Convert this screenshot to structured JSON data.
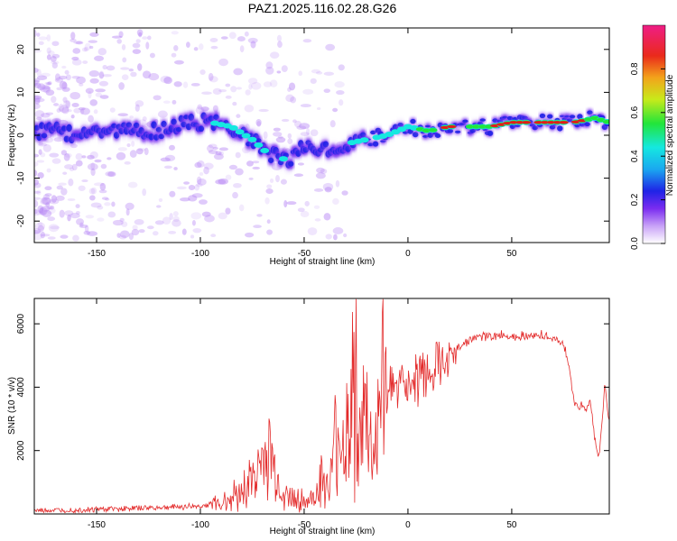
{
  "title": "PAZ1.2025.116.02.28.G26",
  "colors": {
    "band_outer": "#b787f5",
    "band_mid": "#6a1cf0",
    "band_inner": "#1f23e6",
    "band_cyan": "#15e8e0",
    "band_green": "#22e53a",
    "band_red": "#e31b1b",
    "snr_line": "#e32b2b"
  },
  "chart_data": [
    {
      "type": "heatmap",
      "xlabel": "Height of straight line (km)",
      "ylabel": "Frequency (Hz)",
      "xlim": [
        -180,
        97
      ],
      "ylim": [
        -25,
        25
      ],
      "xticks": [
        -150,
        -100,
        -50,
        0,
        50
      ],
      "yticks": [
        -20,
        -10,
        0,
        10,
        20
      ],
      "colorbar": {
        "label": "Normalized spectral amplitude",
        "ticks": [
          "0.0",
          "0.2",
          "0.4",
          "0.6",
          "0.8"
        ],
        "range": [
          0,
          1
        ]
      },
      "ridge": {
        "x": [
          -180,
          -160,
          -140,
          -120,
          -105,
          -95,
          -85,
          -75,
          -68,
          -62,
          -58,
          -50,
          -40,
          -30,
          -20,
          -10,
          0,
          10,
          20,
          30,
          40,
          50,
          60,
          70,
          80,
          90,
          97
        ],
        "freq": [
          1,
          0.5,
          1,
          1,
          3,
          3,
          2,
          -1,
          -4,
          -5,
          -6,
          -2,
          -3,
          -2,
          -1,
          0,
          2,
          1,
          2,
          2,
          2,
          3,
          3,
          3,
          3,
          4,
          3
        ],
        "amplitude": [
          0.25,
          0.25,
          0.25,
          0.25,
          0.3,
          0.35,
          0.4,
          0.4,
          0.45,
          0.4,
          0.35,
          0.3,
          0.3,
          0.35,
          0.4,
          0.45,
          0.5,
          0.6,
          0.85,
          0.7,
          0.75,
          0.85,
          0.9,
          0.9,
          0.8,
          0.7,
          0.7
        ]
      }
    },
    {
      "type": "line",
      "xlabel": "Height of straight line (km)",
      "ylabel": "SNR (10 * v/v)",
      "xlim": [
        -180,
        97
      ],
      "ylim": [
        0,
        6800
      ],
      "xticks": [
        -150,
        -100,
        -50,
        0,
        50
      ],
      "yticks": [
        2000,
        4000,
        6000
      ],
      "series": [
        {
          "x": [
            -180,
            -150,
            -120,
            -100,
            -90,
            -80,
            -72,
            -67,
            -63,
            -60,
            -55,
            -50,
            -45,
            -42,
            -38,
            -34,
            -30,
            -27,
            -25,
            -23,
            -20,
            -17,
            -15,
            -12,
            -8,
            -5,
            -2,
            0,
            5,
            10,
            15,
            20,
            25,
            30,
            35,
            40,
            45,
            50,
            55,
            60,
            65,
            70,
            75,
            78,
            80,
            83,
            86,
            88,
            90,
            91,
            92,
            93,
            94,
            95,
            96,
            97
          ],
          "y": [
            100,
            150,
            200,
            250,
            350,
            700,
            1400,
            2000,
            1100,
            600,
            500,
            400,
            450,
            1100,
            700,
            2500,
            2000,
            3700,
            4800,
            2000,
            3000,
            1500,
            2500,
            4000,
            4000,
            4100,
            4400,
            4000,
            4400,
            4600,
            4800,
            5100,
            5300,
            5500,
            5600,
            5600,
            5650,
            5600,
            5650,
            5600,
            5650,
            5500,
            5400,
            4500,
            3500,
            3400,
            3300,
            3600,
            2300,
            2000,
            1800,
            2500,
            3300,
            4200,
            3400,
            3000
          ]
        }
      ]
    }
  ]
}
